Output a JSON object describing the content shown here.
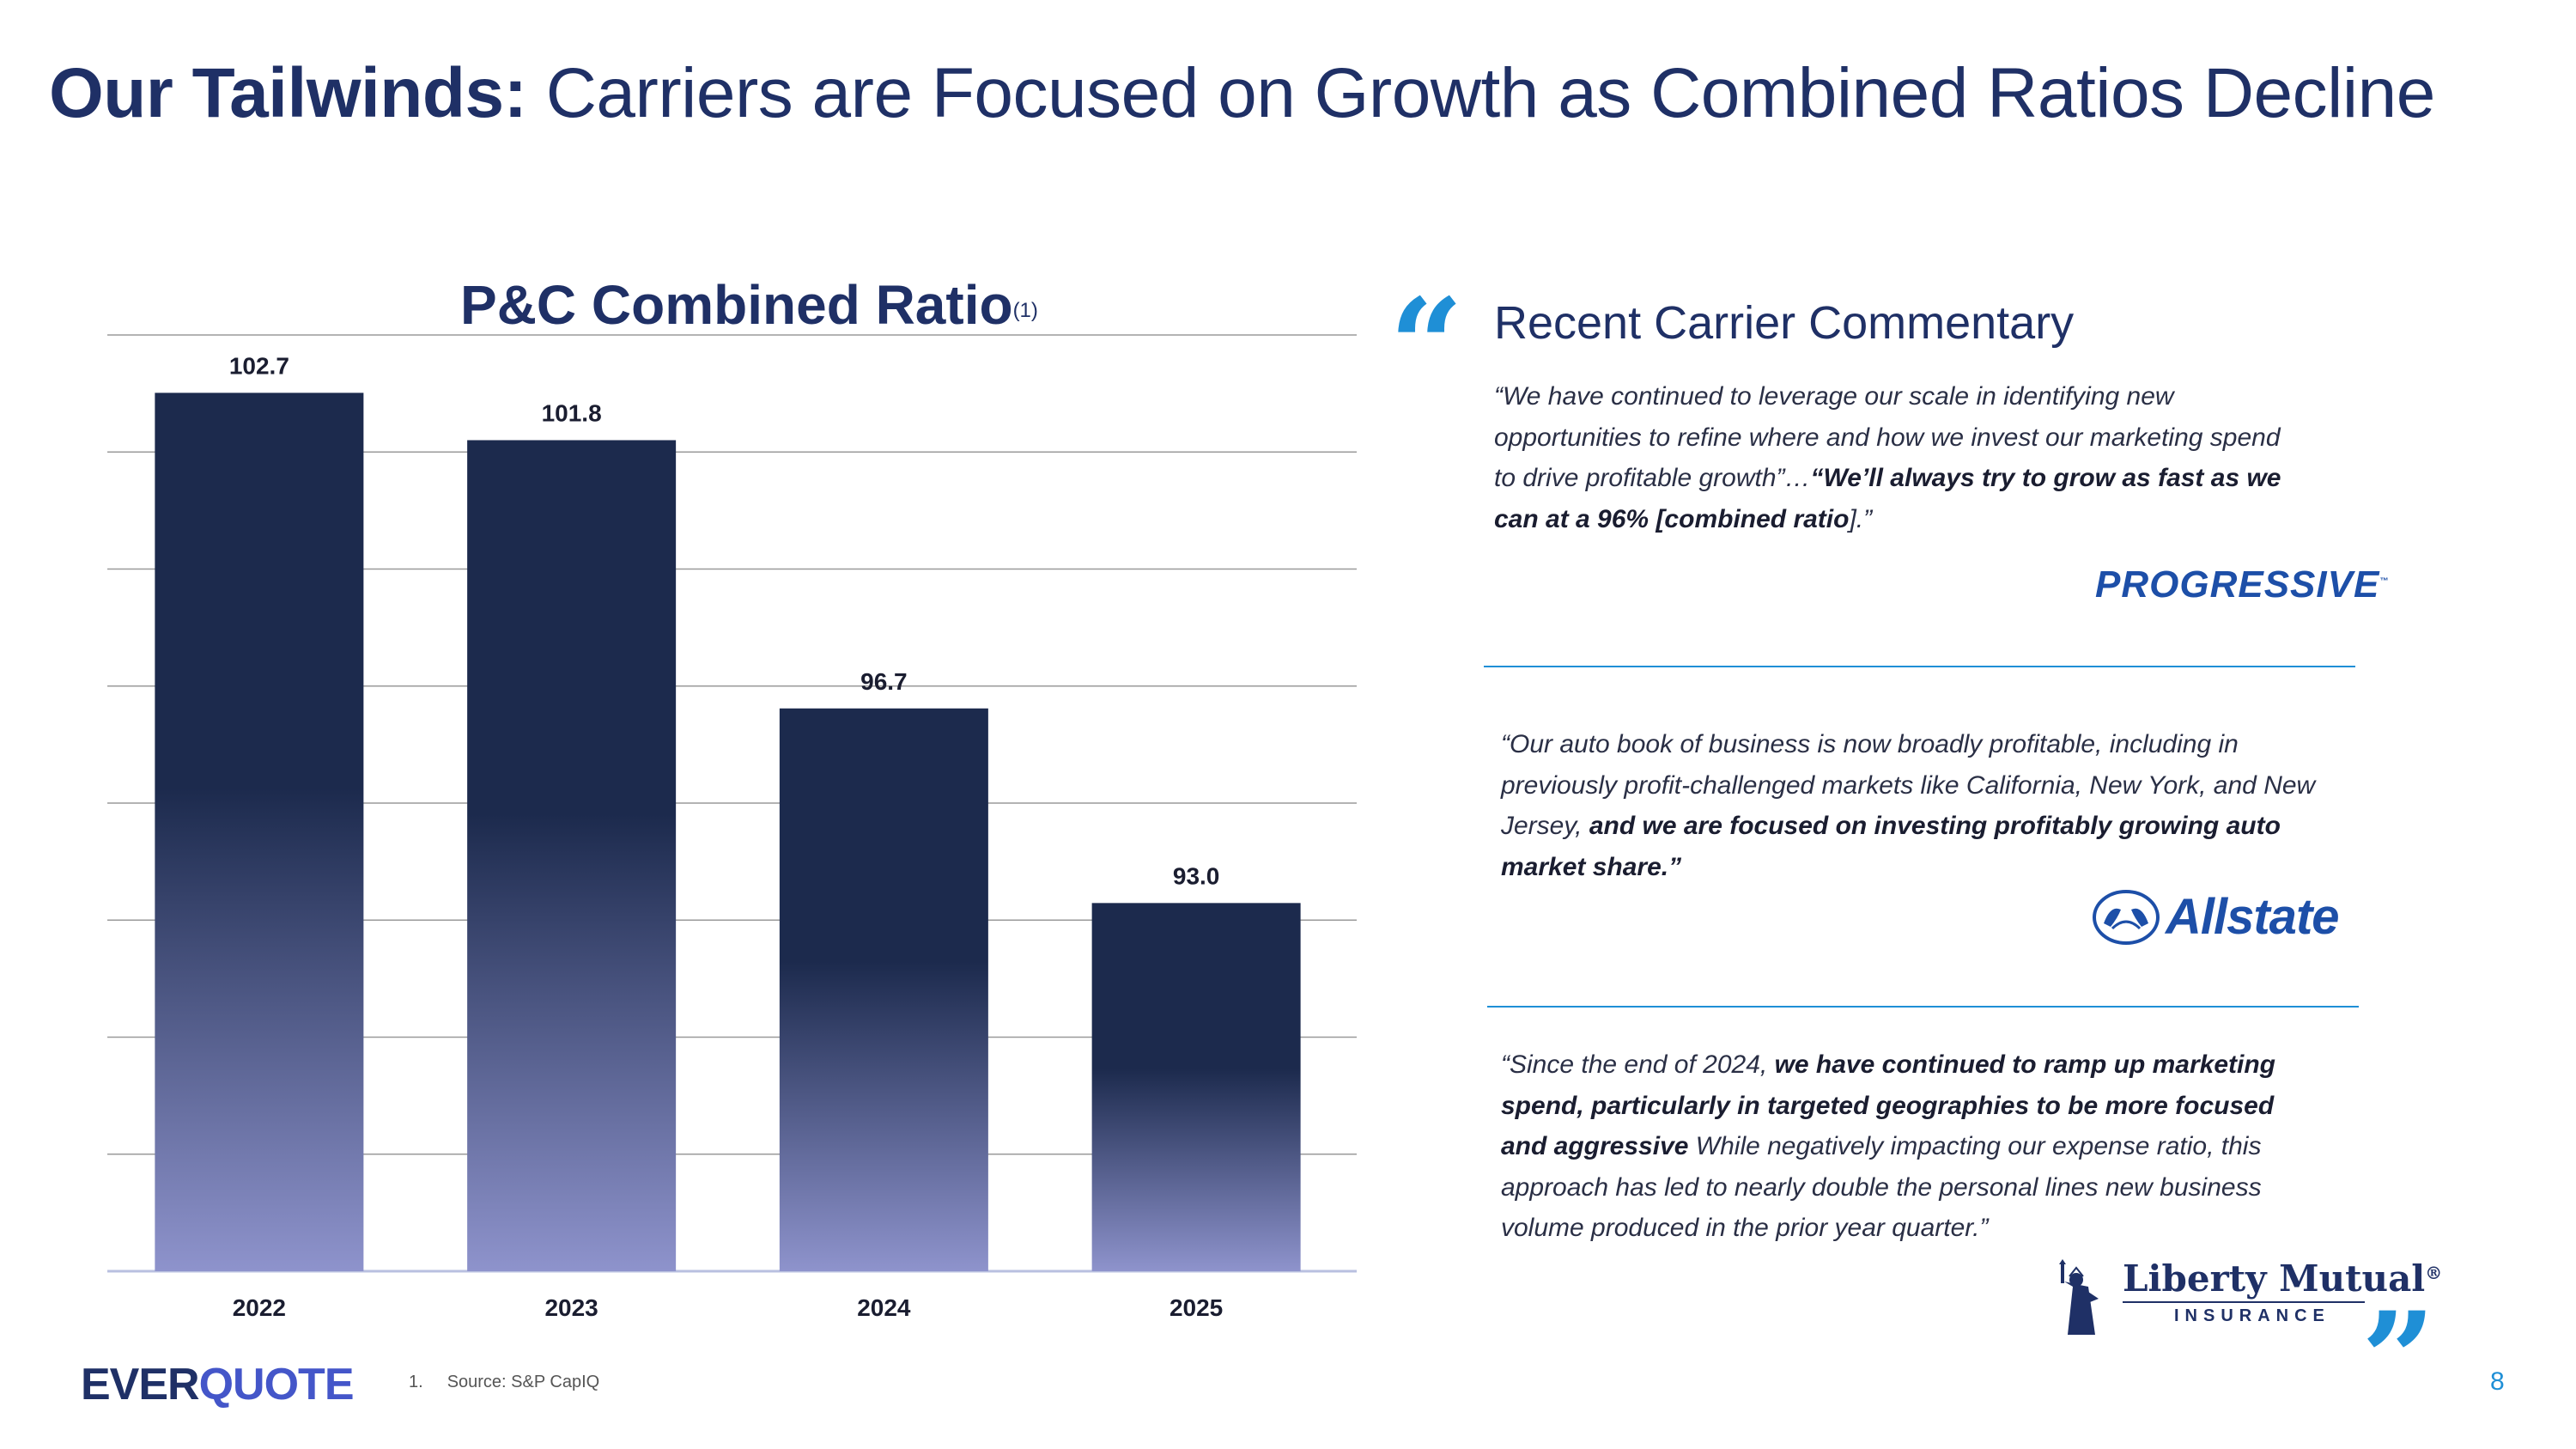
{
  "header": {
    "title_bold": "Our Tailwinds:",
    "title_rest": "Carriers are Focused on Growth as Combined Ratios Decline"
  },
  "chart_data": {
    "type": "bar",
    "title": "P&C Combined Ratio",
    "title_footnote": "(1)",
    "categories": [
      "2022",
      "2023",
      "2024",
      "2025"
    ],
    "values": [
      102.7,
      101.8,
      96.7,
      93.0
    ],
    "value_labels": [
      "102.7",
      "101.8",
      "96.7",
      "93.0"
    ],
    "ylim": [
      86.0,
      103.8
    ],
    "grid": true,
    "legend": "none",
    "colors": {
      "bar_top": "#1c2a4d",
      "bar_bottom": "#8e93cc",
      "grid": "#9a9a9a"
    }
  },
  "commentary": {
    "title": "Recent Carrier Commentary",
    "open_quote": "“",
    "close_quote": "”",
    "quotes": [
      {
        "parts": [
          {
            "text": "“We have continued to leverage our scale in identifying new opportunities to refine where and how we invest our marketing spend to drive profitable growth”…",
            "bold": false
          },
          {
            "text": "“We’ll always try to grow as fast as we can at a 96% [combined ratio",
            "bold": true
          },
          {
            "text": "].”",
            "bold": false
          }
        ],
        "logo": "PROGRESSIVE"
      },
      {
        "parts": [
          {
            "text": "“Our auto book of business is now broadly profitable, including in previously profit-challenged markets like California, New York, and New Jersey, ",
            "bold": false
          },
          {
            "text": "and we are focused on investing profitably growing auto market share.”",
            "bold": true
          }
        ],
        "logo": "Allstate"
      },
      {
        "parts": [
          {
            "text": "“Since the end of 2024, ",
            "bold": false
          },
          {
            "text": "we have continued to ramp up marketing spend, particularly in targeted geographies to be more focused and aggressive",
            "bold": true
          },
          {
            "text": " While negatively impacting our expense ratio, this approach has led to nearly double the personal lines new business volume produced in the prior year quarter.”",
            "bold": false
          }
        ],
        "logo_name": "Liberty Mutual",
        "logo_reg": "®",
        "logo_sub": "INSURANCE"
      }
    ]
  },
  "footer": {
    "brand_a": "EVER",
    "brand_b": "QUOTE",
    "footnote_num": "1.",
    "footnote_text": "Source: S&P CapIQ",
    "page_number": "8"
  },
  "icons": {
    "quote_open": "quote-open-icon",
    "quote_close": "quote-close-icon",
    "allstate": "allstate-hands-icon",
    "liberty": "statue-of-liberty-icon"
  }
}
